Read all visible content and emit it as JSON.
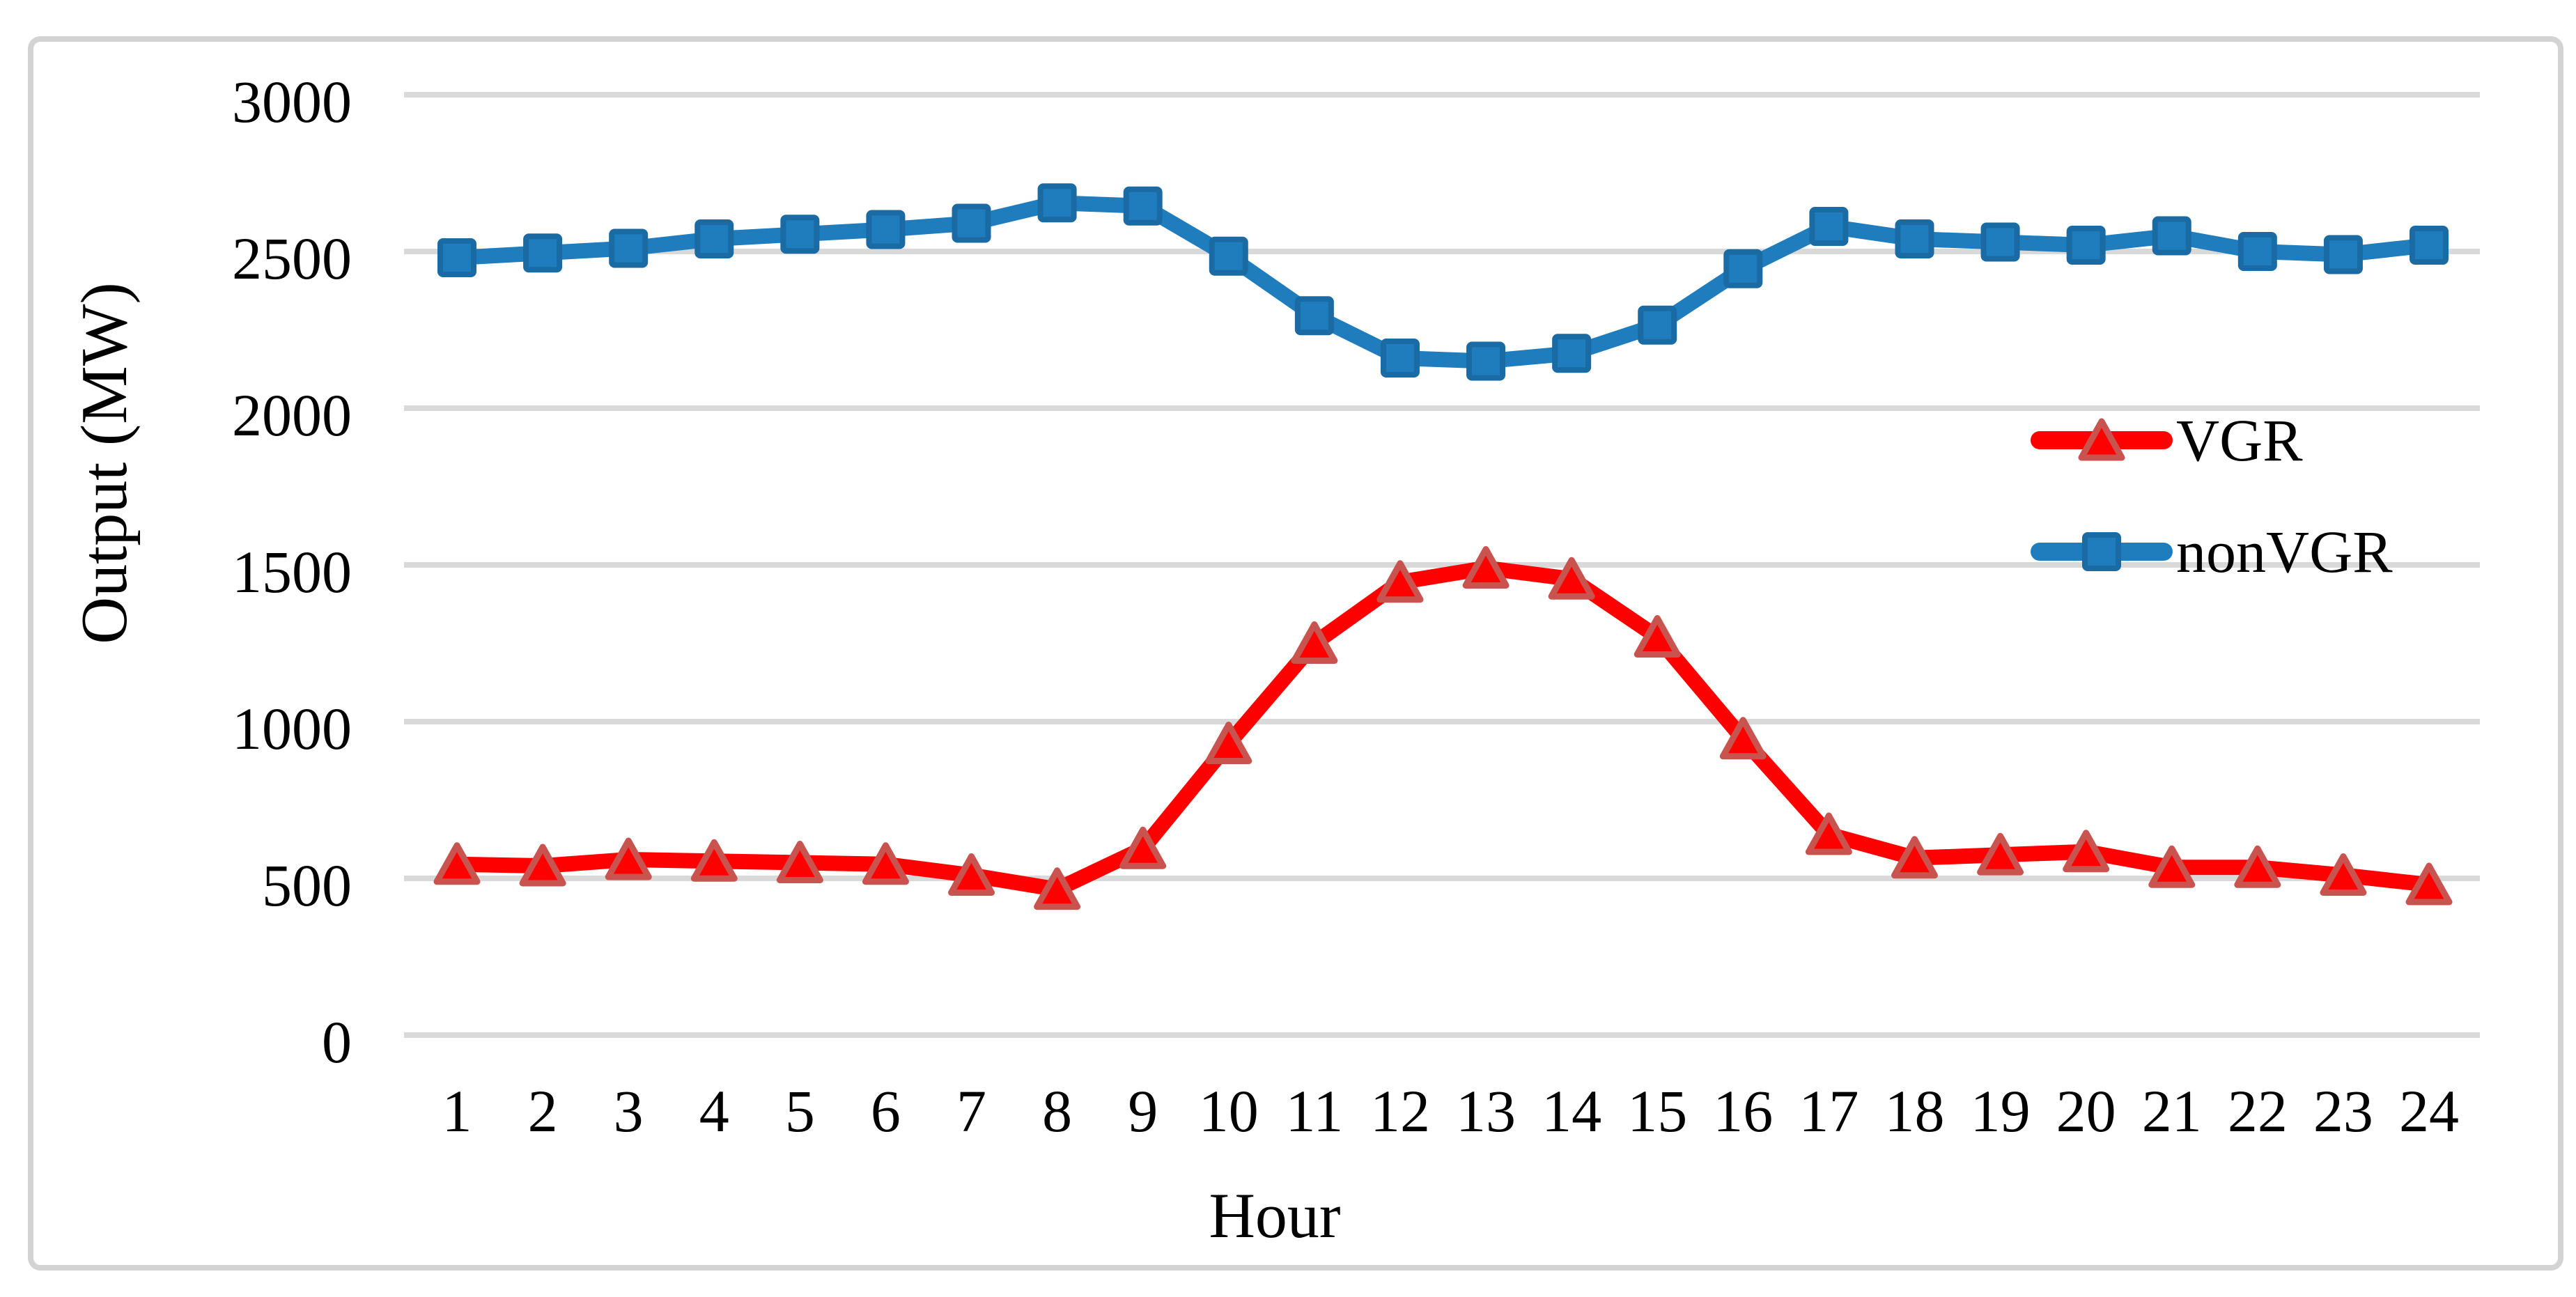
{
  "chart_data": {
    "type": "line",
    "title": "",
    "xlabel": "Hour",
    "ylabel": "Output (MW)",
    "x": [
      1,
      2,
      3,
      4,
      5,
      6,
      7,
      8,
      9,
      10,
      11,
      12,
      13,
      14,
      15,
      16,
      17,
      18,
      19,
      20,
      21,
      22,
      23,
      24
    ],
    "series": [
      {
        "name": "VGR",
        "color": "#FE0000",
        "marker": "triangle",
        "marker_stroke": "#C9544F",
        "values": [
          545,
          540,
          560,
          555,
          550,
          545,
          510,
          465,
          595,
          930,
          1250,
          1445,
          1490,
          1455,
          1270,
          945,
          640,
          565,
          575,
          585,
          535,
          535,
          510,
          480
        ]
      },
      {
        "name": "nonVGR",
        "color": "#1F7DBE",
        "marker": "square",
        "marker_stroke": "#1A6AA3",
        "values": [
          2480,
          2495,
          2510,
          2540,
          2555,
          2570,
          2590,
          2655,
          2645,
          2485,
          2295,
          2160,
          2150,
          2175,
          2265,
          2445,
          2580,
          2540,
          2530,
          2520,
          2550,
          2500,
          2490,
          2520
        ]
      }
    ],
    "ylim": [
      0,
      3000
    ],
    "yticks": [
      0,
      500,
      1000,
      1500,
      2000,
      2500,
      3000
    ],
    "grid": "horizontal",
    "legend_position": "right-middle"
  },
  "styles": {
    "background": "#FFFFFF",
    "gridline_color": "#D9D9D9",
    "frame_color": "#D3D3D3",
    "text_color": "#000000"
  }
}
